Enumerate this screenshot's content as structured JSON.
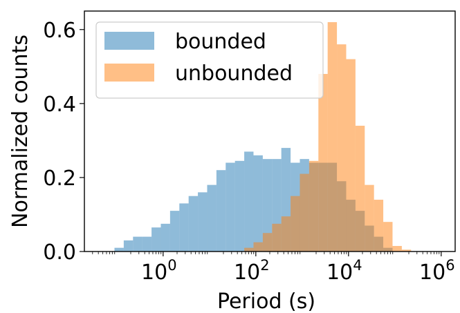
{
  "chart_data": {
    "type": "histogram",
    "title": "",
    "xlabel": "Period (s)",
    "ylabel": "Normalized counts",
    "xscale": "log",
    "xlim": [
      0.02,
      2000000
    ],
    "ylim": [
      0,
      0.65
    ],
    "grid": false,
    "legend_position": "upper-left",
    "x_ticks": [
      {
        "value": 1,
        "base": "10",
        "exp": "0"
      },
      {
        "value": 100,
        "base": "10",
        "exp": "2"
      },
      {
        "value": 10000,
        "base": "10",
        "exp": "4"
      },
      {
        "value": 1000000,
        "base": "10",
        "exp": "6"
      }
    ],
    "y_ticks": [
      {
        "value": 0.0,
        "label": "0.0"
      },
      {
        "value": 0.2,
        "label": "0.2"
      },
      {
        "value": 0.4,
        "label": "0.4"
      },
      {
        "value": 0.6,
        "label": "0.6"
      }
    ],
    "bin_edges_log10": [
      -1.05,
      -0.85,
      -0.65,
      -0.45,
      -0.25,
      -0.05,
      0.15,
      0.35,
      0.55,
      0.75,
      0.95,
      1.15,
      1.35,
      1.55,
      1.75,
      1.95,
      2.15,
      2.35,
      2.55,
      2.75,
      2.95,
      3.15,
      3.35,
      3.55,
      3.75,
      3.95,
      4.15,
      4.35,
      4.55,
      4.75,
      4.95,
      5.15,
      5.35,
      5.55,
      5.75
    ],
    "series": [
      {
        "name": "bounded",
        "color": "#1f77b4",
        "opacity": 0.5,
        "values": [
          0.01,
          0.03,
          0.04,
          0.04,
          0.065,
          0.075,
          0.11,
          0.13,
          0.15,
          0.16,
          0.18,
          0.22,
          0.24,
          0.245,
          0.27,
          0.26,
          0.25,
          0.25,
          0.28,
          0.24,
          0.25,
          0.24,
          0.24,
          0.24,
          0.19,
          0.14,
          0.11,
          0.07,
          0.04,
          0.01,
          0,
          0,
          0,
          0
        ]
      },
      {
        "name": "unbounded",
        "color": "#ff7f0e",
        "opacity": 0.5,
        "values": [
          0,
          0,
          0,
          0,
          0,
          0,
          0,
          0,
          0,
          0,
          0,
          0,
          0,
          0,
          0.01,
          0.025,
          0.05,
          0.075,
          0.095,
          0.15,
          0.21,
          0.245,
          0.48,
          0.62,
          0.56,
          0.52,
          0.34,
          0.18,
          0.14,
          0.08,
          0.015,
          0.005,
          0,
          0
        ]
      }
    ]
  }
}
